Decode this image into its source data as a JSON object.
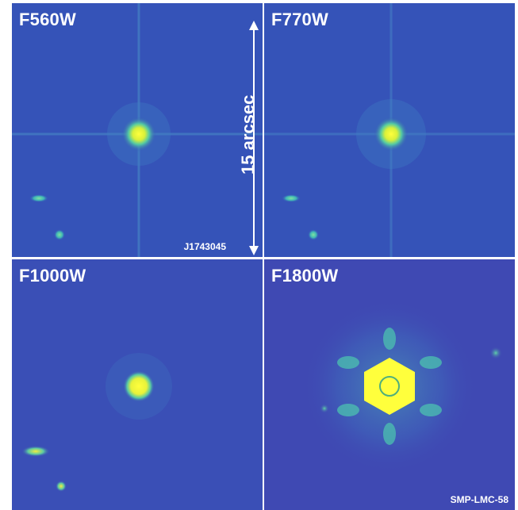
{
  "panels": [
    {
      "filter": "F560W"
    },
    {
      "filter": "F770W"
    },
    {
      "filter": "F1000W"
    },
    {
      "filter": "F1800W"
    }
  ],
  "target_label": "J1743045",
  "lmc_label": "SMP-LMC-58",
  "scale_label": "15 arcsec",
  "colors": {
    "background": "#3553b8",
    "source_core": "#ffff3c",
    "halo": "#4ecdb0"
  }
}
